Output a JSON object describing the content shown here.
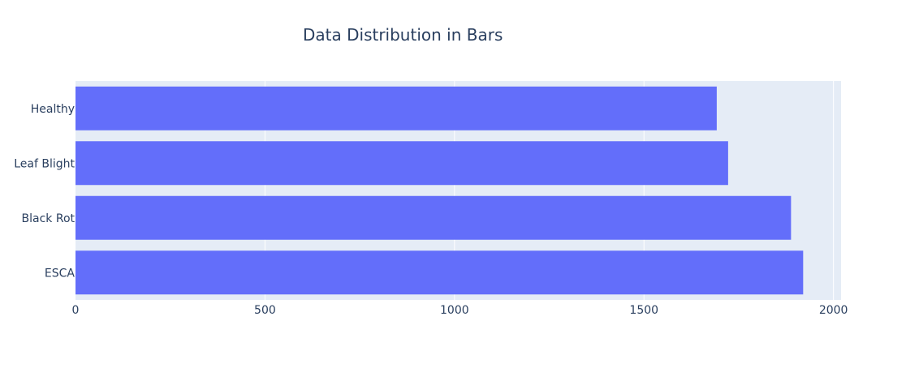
{
  "chart_data": {
    "type": "bar",
    "orientation": "horizontal",
    "title": "Data Distribution in Bars",
    "xlabel": "",
    "ylabel": "",
    "categories": [
      "Healthy",
      "Leaf Blight",
      "Black Rot",
      "ESCA"
    ],
    "values": [
      1692,
      1722,
      1888,
      1920
    ],
    "xlim": [
      0,
      2020
    ],
    "x_ticks": [
      0,
      500,
      1000,
      1500,
      2000
    ],
    "x_tick_labels": [
      "0",
      "500",
      "1000",
      "1500",
      "2000"
    ],
    "grid": true,
    "legend": "none",
    "colors": {
      "bar": "#636efa",
      "plot_background": "#e5ecf6",
      "grid": "#ffffff",
      "text": "#2a3f5f"
    }
  }
}
